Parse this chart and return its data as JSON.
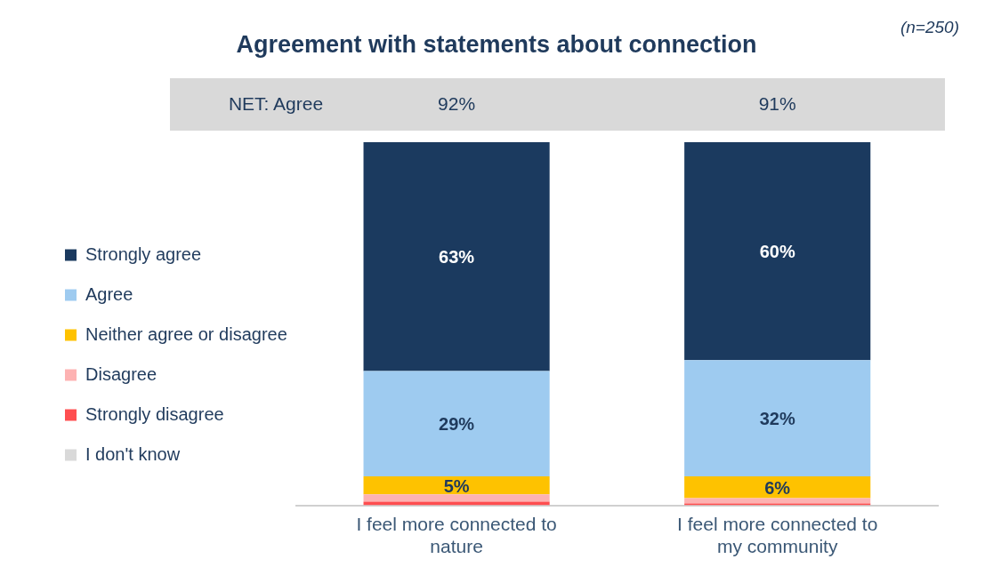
{
  "chart_data": {
    "type": "bar",
    "title": "Agreement with statements about connection",
    "stacked": true,
    "categories": [
      "I feel more connected to nature",
      "I feel more connected to my community"
    ],
    "series": [
      {
        "name": "I don't know",
        "color": "#d9d9d9",
        "values": [
          0,
          0
        ],
        "value_labels": [
          null,
          null
        ]
      },
      {
        "name": "Strongly disagree",
        "color": "#fe4e50",
        "values": [
          1,
          0.5
        ],
        "value_labels": [
          null,
          null
        ]
      },
      {
        "name": "Disagree",
        "color": "#fdb2b2",
        "values": [
          2,
          1.5
        ],
        "value_labels": [
          null,
          null
        ]
      },
      {
        "name": "Neither agree or disagree",
        "color": "#fec200",
        "values": [
          5,
          6
        ],
        "value_labels": [
          "5%",
          "6%"
        ]
      },
      {
        "name": "Agree",
        "color": "#9ecbf0",
        "values": [
          29,
          32
        ],
        "value_labels": [
          "29%",
          "32%"
        ]
      },
      {
        "name": "Strongly agree",
        "color": "#1b3a5f",
        "values": [
          63,
          60
        ],
        "value_labels": [
          "63%",
          "60%"
        ]
      }
    ],
    "ylim": [
      0,
      100
    ],
    "tick_labels": "x",
    "legend": "left",
    "grid": false,
    "annotations": [
      "(n=250)",
      "NET: Agree",
      "92%",
      "91%"
    ]
  }
}
